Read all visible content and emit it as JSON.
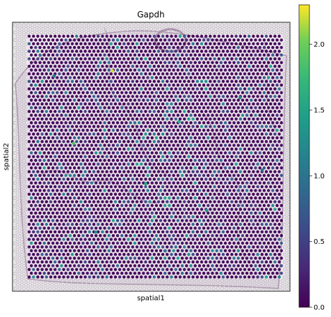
{
  "chart_data": {
    "type": "scatter",
    "title": "Gapdh",
    "xlabel": "spatial1",
    "ylabel": "spatial2",
    "x_ticks": [],
    "y_ticks": [],
    "grid": false,
    "colorbar": {
      "colormap": "viridis",
      "range": [
        0.0,
        2.3
      ],
      "ticks": [
        0.0,
        0.5,
        1.0,
        1.5,
        2.0
      ],
      "tick_labels": [
        "0.0",
        "0.5",
        "1.0",
        "1.5",
        "2.0"
      ],
      "placement": "right"
    },
    "spot_layout": "hexagonal grid of tissue spots over a faint histology image; most spots at low expression (dark purple), scattered spots at higher expression (teal/green/yellow)",
    "highlight_points": [
      {
        "x": 0.36,
        "y": 0.82,
        "value": 2.2
      },
      {
        "x": 0.22,
        "y": 0.55,
        "value": 1.9
      },
      {
        "x": 0.6,
        "y": 0.63,
        "value": 1.6
      },
      {
        "x": 0.48,
        "y": 0.4,
        "value": 1.5
      },
      {
        "x": 0.7,
        "y": 0.3,
        "value": 1.4
      },
      {
        "x": 0.3,
        "y": 0.22,
        "value": 1.3
      },
      {
        "x": 0.82,
        "y": 0.72,
        "value": 1.2
      },
      {
        "x": 0.15,
        "y": 0.8,
        "value": 1.1
      },
      {
        "x": 0.55,
        "y": 0.15,
        "value": 1.0
      },
      {
        "x": 0.9,
        "y": 0.45,
        "value": 1.0
      }
    ]
  },
  "colors": {
    "background": "#ffffff",
    "axes_background": "#ebe6ea",
    "low": "#440154",
    "mid": "#21918c",
    "high": "#fde725",
    "tissue_stroke": "#8a5c8c",
    "outer_spot": "#b9b4bb"
  }
}
